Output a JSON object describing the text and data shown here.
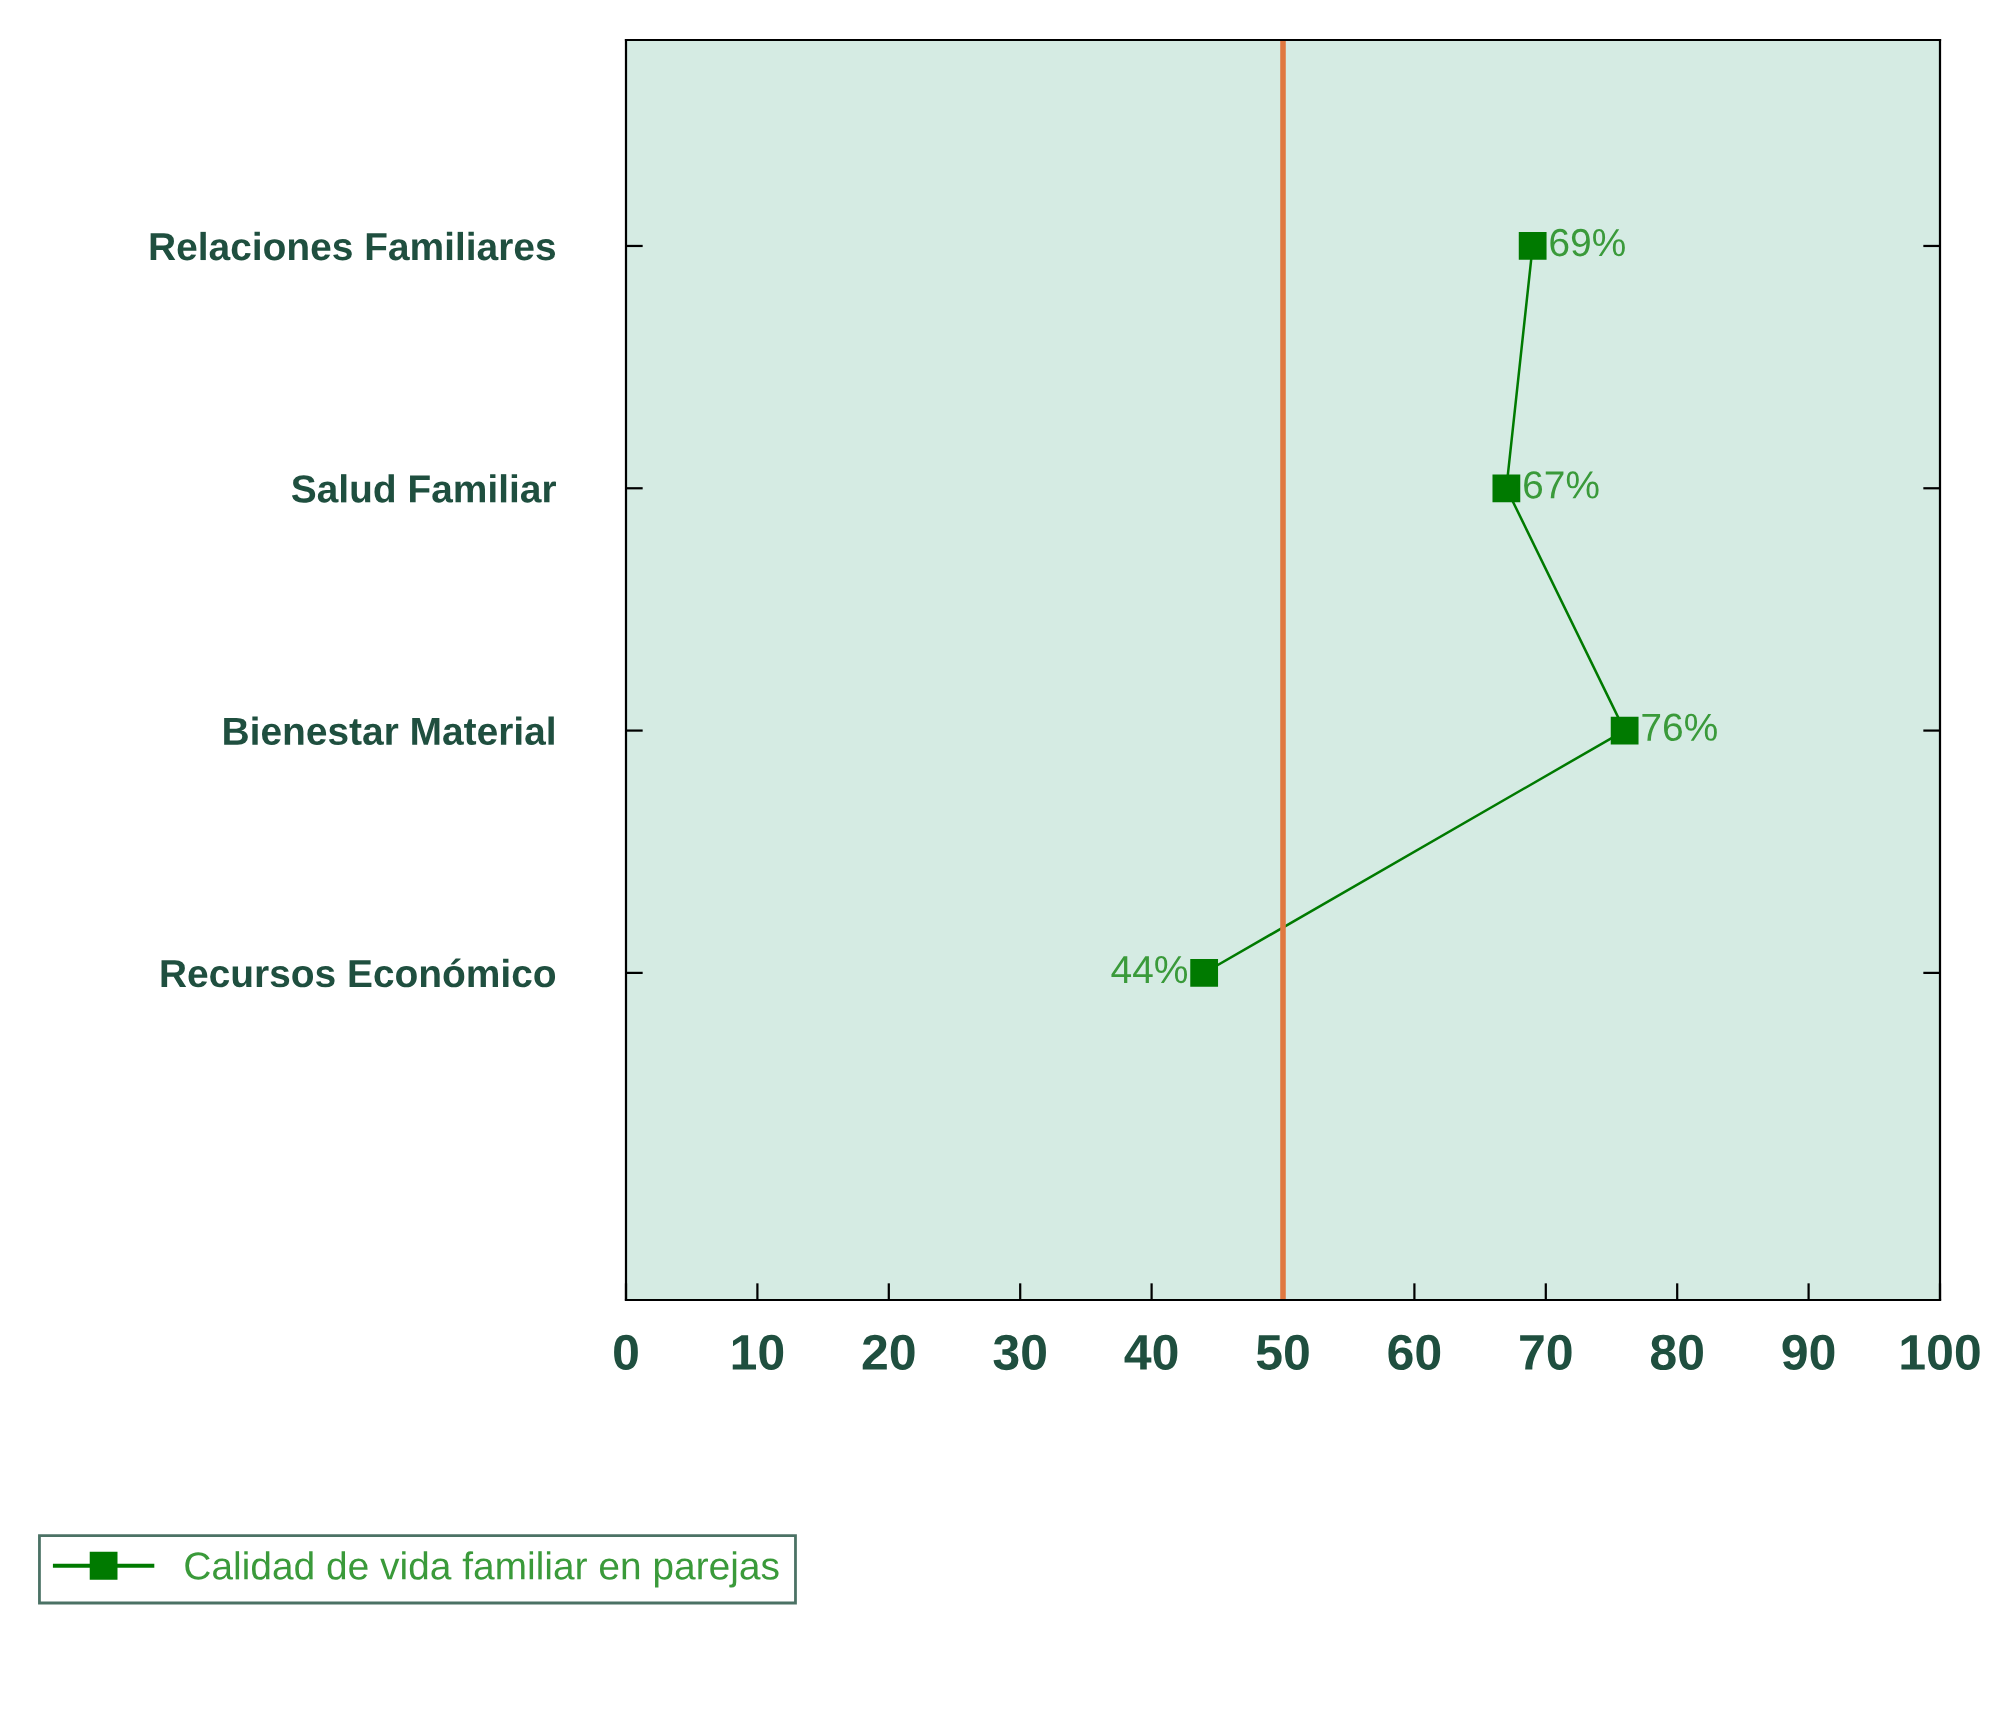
{
  "chart_data": {
    "type": "line",
    "orientation": "horizontal",
    "categories": [
      "Relaciones Familiares",
      "Salud Familiar",
      "Bienestar Material",
      "Recursos Económico"
    ],
    "series": [
      {
        "name": "Calidad de vida familiar en parejas",
        "color": "#007a00",
        "values": [
          69,
          67,
          76,
          44
        ],
        "value_labels": [
          "69%",
          "67%",
          "76%",
          "44%"
        ]
      }
    ],
    "xlim": [
      0,
      100
    ],
    "xticks": [
      0,
      10,
      20,
      30,
      40,
      50,
      60,
      70,
      80,
      90,
      100
    ],
    "ref_lines": [
      {
        "axis": "x",
        "value": 50,
        "color": "#e07840"
      }
    ],
    "marker": "square",
    "line_style": "solid",
    "grid": false,
    "legend": "bottom left"
  }
}
